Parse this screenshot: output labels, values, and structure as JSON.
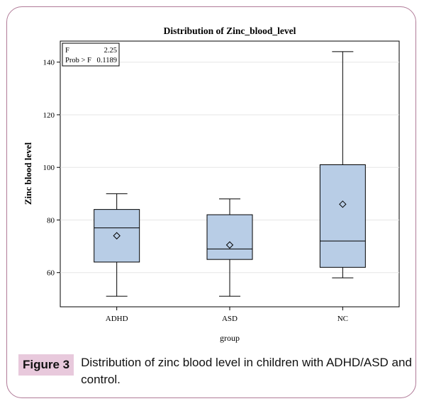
{
  "chart_data": {
    "type": "box",
    "title": "Distribution of Zinc_blood_level",
    "xlabel": "group",
    "ylabel": "Zinc blood level",
    "ylim": [
      47,
      148
    ],
    "yticks": [
      60,
      80,
      100,
      120,
      140
    ],
    "categories": [
      "ADHD",
      "ASD",
      "NC"
    ],
    "boxes": [
      {
        "category": "ADHD",
        "min": 51,
        "q1": 64,
        "median": 77,
        "q3": 84,
        "max": 90,
        "mean": 74
      },
      {
        "category": "ASD",
        "min": 51,
        "q1": 65,
        "median": 69,
        "q3": 82,
        "max": 88,
        "mean": 70.5
      },
      {
        "category": "NC",
        "min": 58,
        "q1": 62,
        "median": 72,
        "q3": 101,
        "max": 144,
        "mean": 86
      }
    ],
    "stats_box": {
      "f_label": "F",
      "f_value": "2.25",
      "p_label": "Prob > F",
      "p_value": "0.1189"
    },
    "colors": {
      "box_fill": "#b8cde6",
      "stroke": "#000000"
    }
  },
  "caption": {
    "label": "Figure 3",
    "text": "Distribution of zinc blood level in children with ADHD/ASD and control."
  }
}
